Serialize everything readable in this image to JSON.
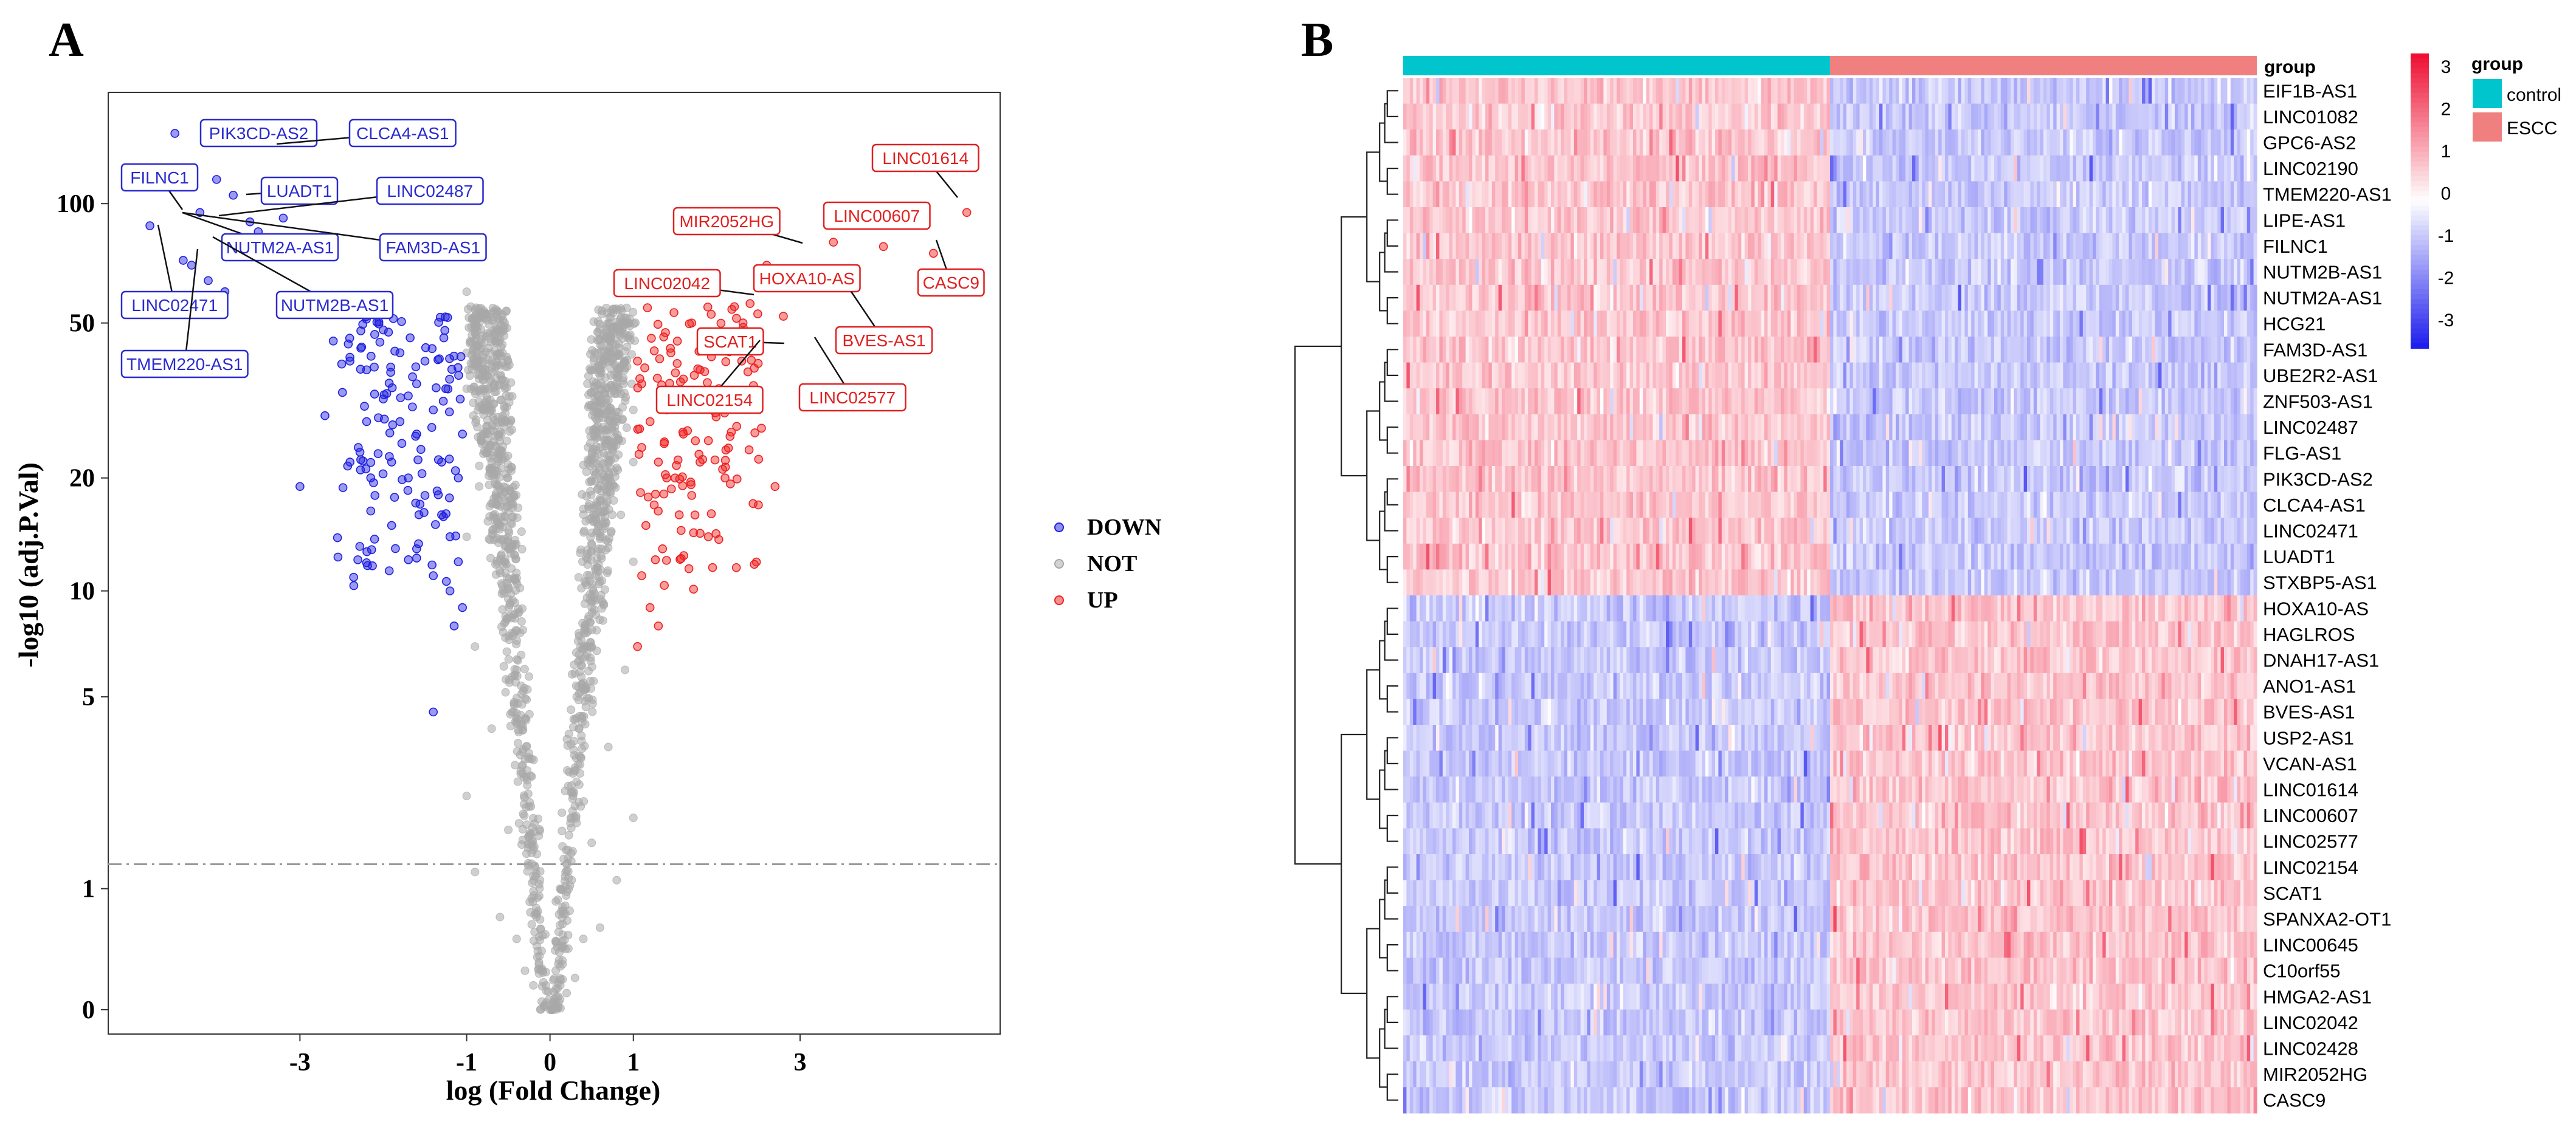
{
  "panels": {
    "a": "A",
    "b": "B"
  },
  "chart_data": [
    {
      "type": "scatter",
      "panel": "A",
      "xlabel": "log (Fold Change)",
      "ylabel": "-log10 (adj.P.Val)",
      "x_ticks": [
        -3,
        -1,
        0,
        1,
        3
      ],
      "x_tick_labels": [
        "-3",
        "-1",
        "0",
        "1",
        "3"
      ],
      "y_scale": "log1p",
      "y_ticks": [
        0,
        1,
        5,
        10,
        20,
        50,
        100
      ],
      "y_tick_labels": [
        "0",
        "1",
        "5",
        "10",
        "20",
        "50",
        "100"
      ],
      "xlim": [
        -5.3,
        5.4
      ],
      "ylim": [
        -0.4,
        190
      ],
      "threshold_y": 1.3,
      "grid": false,
      "legend_position": "right",
      "colors": {
        "DOWN": "#2020e0",
        "NOT": "#a8a8a8",
        "UP": "#ee2222"
      },
      "legend": [
        "DOWN",
        "NOT",
        "UP"
      ],
      "series": [
        {
          "name": "DOWN",
          "points": [
            [
              -4.5,
              150
            ],
            [
              -4.0,
              115
            ],
            [
              -3.8,
              105
            ],
            [
              -4.2,
              95
            ],
            [
              -3.6,
              90
            ],
            [
              -3.2,
              92
            ],
            [
              -3.0,
              75
            ],
            [
              -4.8,
              88
            ],
            [
              -4.4,
              72
            ],
            [
              -4.3,
              70
            ],
            [
              -4.1,
              64
            ],
            [
              -3.9,
              60
            ],
            [
              -3.5,
              85
            ],
            [
              -2.5,
              55
            ],
            [
              -2.6,
              45
            ],
            [
              -2.4,
              40
            ],
            [
              -2.2,
              38
            ],
            [
              -2.0,
              32
            ],
            [
              -1.8,
              28
            ],
            [
              -1.6,
              26
            ],
            [
              -1.4,
              30
            ],
            [
              -2.3,
              24
            ],
            [
              -1.9,
              22
            ],
            [
              -1.7,
              20
            ],
            [
              -1.5,
              18
            ],
            [
              -1.3,
              16
            ],
            [
              -1.2,
              14
            ],
            [
              -1.1,
              12
            ],
            [
              -2.1,
              18
            ],
            [
              -1.9,
              15
            ],
            [
              -1.6,
              13
            ],
            [
              -1.4,
              11
            ],
            [
              -1.2,
              10
            ],
            [
              -1.05,
              9
            ],
            [
              -1.3,
              22
            ],
            [
              -1.1,
              20
            ],
            [
              -2.4,
              22
            ],
            [
              -2.7,
              29
            ],
            [
              -2.0,
              48
            ],
            [
              -1.5,
              40
            ],
            [
              -3.0,
              19
            ],
            [
              -1.4,
              4.5
            ],
            [
              -1.15,
              8
            ],
            [
              -1.6,
              35
            ],
            [
              -1.8,
              42
            ],
            [
              -2.2,
              28
            ],
            [
              -1.05,
              26
            ],
            [
              -1.25,
              34
            ]
          ]
        },
        {
          "name": "UP",
          "points": [
            [
              5.0,
              95
            ],
            [
              4.6,
              75
            ],
            [
              4.0,
              78
            ],
            [
              3.4,
              80
            ],
            [
              3.0,
              65
            ],
            [
              2.6,
              70
            ],
            [
              2.4,
              56
            ],
            [
              2.8,
              52
            ],
            [
              3.1,
              34
            ],
            [
              2.2,
              31
            ],
            [
              2.0,
              45
            ],
            [
              1.8,
              38
            ],
            [
              1.6,
              36
            ],
            [
              1.4,
              30
            ],
            [
              1.2,
              28
            ],
            [
              1.1,
              24
            ],
            [
              1.3,
              22
            ],
            [
              1.5,
              20
            ],
            [
              1.7,
              18
            ],
            [
              1.9,
              25
            ],
            [
              1.25,
              17
            ],
            [
              1.15,
              15
            ],
            [
              1.35,
              13
            ],
            [
              1.1,
              11
            ],
            [
              1.2,
              9
            ],
            [
              1.3,
              8
            ],
            [
              1.4,
              20
            ],
            [
              1.6,
              26
            ],
            [
              1.8,
              22
            ],
            [
              2.1,
              20
            ],
            [
              2.5,
              17
            ],
            [
              2.7,
              19
            ],
            [
              1.05,
              40
            ],
            [
              1.1,
              35
            ],
            [
              1.45,
              42
            ],
            [
              1.7,
              50
            ],
            [
              2.3,
              40
            ],
            [
              1.05,
              7
            ],
            [
              1.55,
              16
            ],
            [
              1.9,
              14
            ]
          ]
        },
        {
          "name": "NOT",
          "points": [
            [
              0,
              0
            ],
            [
              0.1,
              0.3
            ],
            [
              -0.1,
              0.4
            ],
            [
              0.15,
              0.8
            ],
            [
              -0.15,
              0.9
            ],
            [
              0.2,
              1.3
            ],
            [
              -0.2,
              1.5
            ],
            [
              0.25,
              2
            ],
            [
              -0.25,
              2.2
            ],
            [
              0.3,
              3
            ],
            [
              -0.3,
              3.2
            ],
            [
              0.35,
              4
            ],
            [
              -0.35,
              4.4
            ],
            [
              0.4,
              5.5
            ],
            [
              -0.4,
              6
            ],
            [
              0.45,
              7
            ],
            [
              -0.45,
              7.5
            ],
            [
              0.5,
              9
            ],
            [
              -0.5,
              9.5
            ],
            [
              0.55,
              11
            ],
            [
              -0.55,
              12
            ],
            [
              0.6,
              14
            ],
            [
              -0.6,
              15
            ],
            [
              0.65,
              17
            ],
            [
              -0.65,
              18
            ],
            [
              0.7,
              20
            ],
            [
              -0.7,
              22
            ],
            [
              0.75,
              24
            ],
            [
              -0.75,
              26
            ],
            [
              0.8,
              28
            ],
            [
              -0.8,
              30
            ],
            [
              0.85,
              33
            ],
            [
              -0.85,
              36
            ],
            [
              0.9,
              40
            ],
            [
              -0.9,
              45
            ],
            [
              0.95,
              50
            ],
            [
              -0.95,
              55
            ],
            [
              -1.0,
              60
            ],
            [
              0.6,
              0.6
            ],
            [
              -0.6,
              0.7
            ],
            [
              0.8,
              1.1
            ],
            [
              -0.9,
              1.2
            ],
            [
              1.0,
              2
            ],
            [
              -1.0,
              2.4
            ],
            [
              0.2,
              0.1
            ],
            [
              -0.2,
              0.15
            ],
            [
              0.05,
              0.05
            ],
            [
              0.4,
              0.5
            ],
            [
              -0.4,
              0.5
            ],
            [
              0.5,
              1.6
            ],
            [
              -0.5,
              1.8
            ],
            [
              0.7,
              3.5
            ],
            [
              -0.7,
              4
            ],
            [
              0.9,
              6
            ],
            [
              -0.9,
              7
            ],
            [
              1.0,
              12
            ],
            [
              -1.0,
              14
            ],
            [
              0.85,
              16
            ],
            [
              -0.85,
              19
            ],
            [
              1.0,
              30
            ],
            [
              -1.0,
              34
            ],
            [
              0.3,
              0.2
            ],
            [
              -0.3,
              0.25
            ],
            [
              0.12,
              1.0
            ],
            [
              -0.12,
              1.1
            ],
            [
              0.22,
              2.6
            ],
            [
              -0.22,
              2.8
            ],
            [
              0.32,
              5
            ],
            [
              -0.32,
              5.2
            ],
            [
              0.42,
              8
            ],
            [
              -0.42,
              8.4
            ],
            [
              0.52,
              10
            ],
            [
              -0.52,
              10.5
            ],
            [
              0.62,
              13
            ],
            [
              -0.62,
              13.5
            ],
            [
              0.72,
              19
            ],
            [
              -0.72,
              21
            ],
            [
              0.82,
              23
            ],
            [
              -0.82,
              25
            ],
            [
              0.92,
              27
            ],
            [
              -0.92,
              29
            ],
            [
              0.98,
              35
            ],
            [
              -0.98,
              38
            ],
            [
              1.0,
              22
            ],
            [
              -1.0,
              42
            ]
          ]
        }
      ],
      "labels": [
        {
          "text": "PIK3CD-AS2",
          "group": "DOWN"
        },
        {
          "text": "CLCA4-AS1",
          "group": "DOWN"
        },
        {
          "text": "FILNC1",
          "group": "DOWN"
        },
        {
          "text": "LUADT1",
          "group": "DOWN"
        },
        {
          "text": "LINC02487",
          "group": "DOWN"
        },
        {
          "text": "NUTM2A-AS1",
          "group": "DOWN"
        },
        {
          "text": "FAM3D-AS1",
          "group": "DOWN"
        },
        {
          "text": "LINC02471",
          "group": "DOWN"
        },
        {
          "text": "NUTM2B-AS1",
          "group": "DOWN"
        },
        {
          "text": "TMEM220-AS1",
          "group": "DOWN"
        },
        {
          "text": "LINC01614",
          "group": "UP"
        },
        {
          "text": "MIR2052HG",
          "group": "UP"
        },
        {
          "text": "LINC00607",
          "group": "UP"
        },
        {
          "text": "LINC02042",
          "group": "UP"
        },
        {
          "text": "HOXA10-AS",
          "group": "UP"
        },
        {
          "text": "CASC9",
          "group": "UP"
        },
        {
          "text": "SCAT1",
          "group": "UP"
        },
        {
          "text": "BVES-AS1",
          "group": "UP"
        },
        {
          "text": "LINC02154",
          "group": "UP"
        },
        {
          "text": "LINC02577",
          "group": "UP"
        }
      ]
    },
    {
      "type": "heatmap",
      "panel": "B",
      "annotation_title": "group",
      "groups": [
        "control",
        "ESCC"
      ],
      "group_colors": {
        "control": "#00c5cd",
        "ESCC": "#f08080"
      },
      "scale_ticks": [
        3,
        2,
        1,
        0,
        -1,
        -2,
        -3
      ],
      "scale_tick_labels": [
        "3",
        "2",
        "1",
        "0",
        "-1",
        "-2",
        "-3"
      ],
      "scale_colors": [
        "#2020ee",
        "#ffffff",
        "#ee1133"
      ],
      "rows": [
        "EIF1B-AS1",
        "LINC01082",
        "GPC6-AS2",
        "LINC02190",
        "TMEM220-AS1",
        "LIPE-AS1",
        "FILNC1",
        "NUTM2B-AS1",
        "NUTM2A-AS1",
        "HCG21",
        "FAM3D-AS1",
        "UBE2R2-AS1",
        "ZNF503-AS1",
        "LINC02487",
        "FLG-AS1",
        "PIK3CD-AS2",
        "CLCA4-AS1",
        "LINC02471",
        "LUADT1",
        "STXBP5-AS1",
        "HOXA10-AS",
        "HAGLROS",
        "DNAH17-AS1",
        "ANO1-AS1",
        "BVES-AS1",
        "USP2-AS1",
        "VCAN-AS1",
        "LINC01614",
        "LINC00607",
        "LINC02577",
        "LINC02154",
        "SCAT1",
        "SPANXA2-OT1",
        "LINC00645",
        "C10orf55",
        "HMGA2-AS1",
        "LINC02042",
        "LINC02428",
        "MIR2052HG",
        "CASC9"
      ],
      "row_group_up_in_control": 20
    }
  ]
}
